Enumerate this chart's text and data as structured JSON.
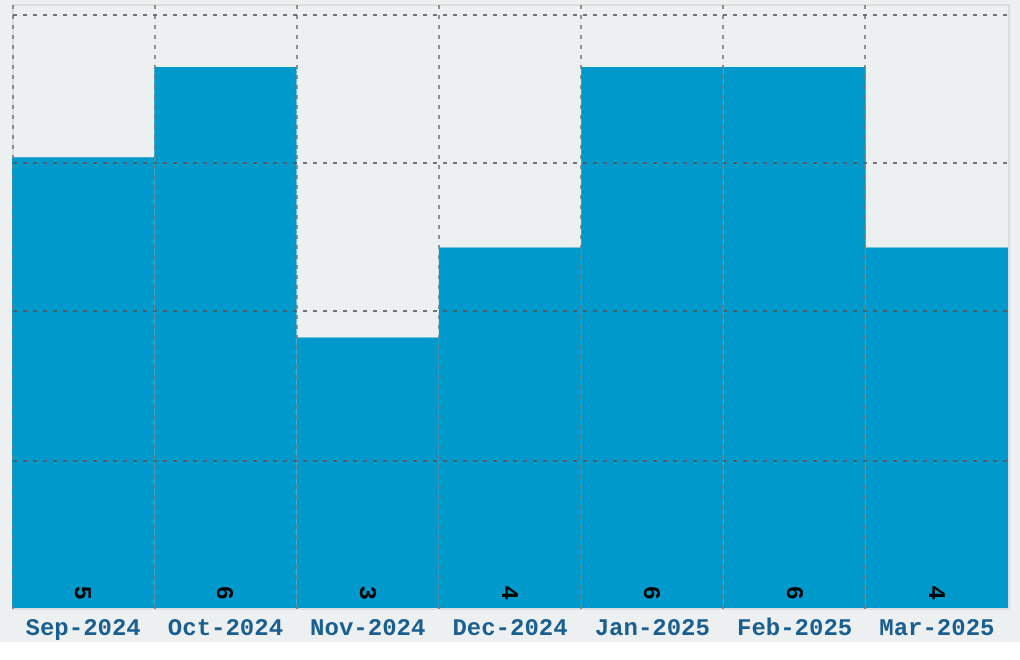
{
  "chart_data": {
    "type": "bar",
    "categories": [
      "Sep-2024",
      "Oct-2024",
      "Nov-2024",
      "Dec-2024",
      "Jan-2025",
      "Feb-2025",
      "Mar-2025"
    ],
    "values": [
      5,
      6,
      3,
      4,
      6,
      6,
      4
    ],
    "color": "#0099cc",
    "ylim": [
      0,
      6.7
    ],
    "yticks": [
      {
        "value": 1.65,
        "label": null
      },
      {
        "value": 3.3,
        "label": null
      },
      {
        "value": 4.95,
        "label": null
      },
      {
        "value": 6.6,
        "label": null
      }
    ],
    "grid": true,
    "tick_labels": "x",
    "data_labels": true
  }
}
